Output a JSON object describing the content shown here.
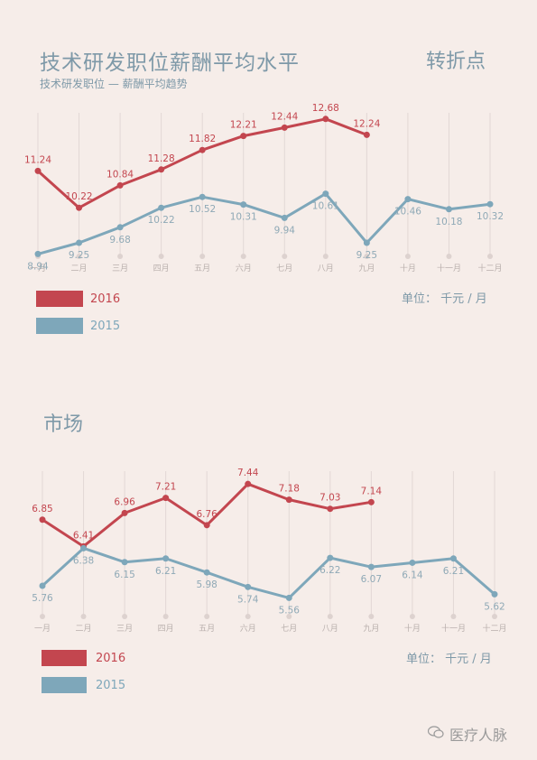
{
  "header": {
    "title": "技术研发职位薪酬平均水平",
    "subtitle": "技术研发职位 — 薪酬平均趋势",
    "turning_point": "转折点"
  },
  "section2": {
    "title": "市场"
  },
  "footer": {
    "watermark": "医疗人脉"
  },
  "colors": {
    "s2016": "#c3464f",
    "s2015": "#7ea7ba",
    "grid": "#e2d8d5",
    "text": "#7e99a8"
  },
  "chart_data": [
    {
      "type": "line",
      "title": "技术研发职位薪酬平均水平",
      "categories": [
        "一月",
        "二月",
        "三月",
        "四月",
        "五月",
        "六月",
        "七月",
        "八月",
        "九月",
        "十月",
        "十一月",
        "十二月"
      ],
      "series": [
        {
          "name": "2016",
          "values": [
            11.24,
            10.22,
            10.84,
            11.28,
            11.82,
            12.21,
            12.44,
            12.68,
            12.24,
            null,
            null,
            null
          ]
        },
        {
          "name": "2015",
          "values": [
            8.94,
            9.25,
            9.68,
            10.22,
            10.52,
            10.31,
            9.94,
            10.61,
            9.25,
            10.46,
            10.18,
            10.32
          ]
        }
      ],
      "ylim": [
        8.7,
        13.0
      ],
      "unit_label": "单位：  千元 / 月",
      "legend": {
        "position": "bottom-left",
        "entries": [
          "2016",
          "2015"
        ]
      },
      "grid": "vertical"
    },
    {
      "type": "line",
      "title": "市场",
      "categories": [
        "一月",
        "二月",
        "三月",
        "四月",
        "五月",
        "六月",
        "七月",
        "八月",
        "九月",
        "十月",
        "十一月",
        "十二月"
      ],
      "series": [
        {
          "name": "2016",
          "values": [
            6.85,
            6.41,
            6.96,
            7.21,
            6.76,
            7.44,
            7.18,
            7.03,
            7.14,
            null,
            null,
            null
          ]
        },
        {
          "name": "2015",
          "values": [
            5.76,
            6.38,
            6.15,
            6.21,
            5.98,
            5.74,
            5.56,
            6.22,
            6.07,
            6.14,
            6.21,
            5.62
          ]
        }
      ],
      "ylim": [
        5.0,
        7.8
      ],
      "unit_label": "单位：  千元 / 月",
      "legend": {
        "position": "bottom-left",
        "entries": [
          "2016",
          "2015"
        ]
      },
      "grid": "vertical"
    }
  ]
}
